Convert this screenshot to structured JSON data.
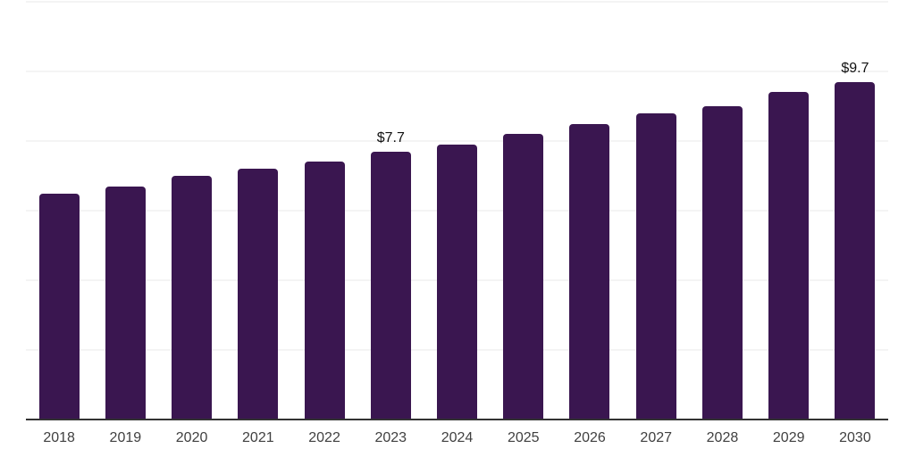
{
  "chart_data": {
    "type": "bar",
    "title": "",
    "xlabel": "",
    "ylabel": "",
    "categories": [
      "2018",
      "2019",
      "2020",
      "2021",
      "2022",
      "2023",
      "2024",
      "2025",
      "2026",
      "2027",
      "2028",
      "2029",
      "2030"
    ],
    "values": [
      6.5,
      6.7,
      7.0,
      7.2,
      7.4,
      7.7,
      7.9,
      8.2,
      8.5,
      8.8,
      9.0,
      9.4,
      9.7
    ],
    "bar_labels": [
      "",
      "",
      "",
      "",
      "",
      "$7.7",
      "",
      "",
      "",
      "",
      "",
      "",
      "$9.7"
    ],
    "ylim": [
      0,
      12
    ],
    "gridline_step": 2,
    "grid": true,
    "legend": false,
    "colors": {
      "bar": "#3a1650",
      "gridline": "#f4f4f4",
      "axis_line": "#333333",
      "tick_label": "#404040",
      "data_label": "#111111",
      "background": "#ffffff"
    }
  }
}
